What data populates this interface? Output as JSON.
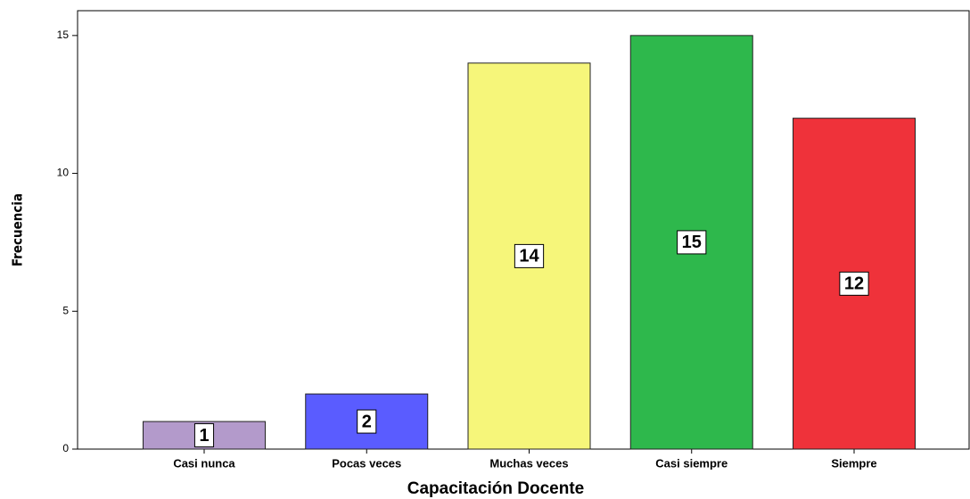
{
  "chart_data": {
    "type": "bar",
    "x_label": "Capacitación Docente",
    "y_label": "Frecuencia",
    "categories": [
      "Casi nunca",
      "Pocas veces",
      "Muchas veces",
      "Casi siempre",
      "Siempre"
    ],
    "values": [
      1,
      2,
      14,
      15,
      12
    ],
    "colors": [
      "#b39acb",
      "#5a5cff",
      "#f6f67a",
      "#2eb84c",
      "#ef323a"
    ],
    "ylim": [
      0,
      15.9
    ],
    "yticks": [
      0,
      5,
      10,
      15
    ],
    "grid": false
  }
}
